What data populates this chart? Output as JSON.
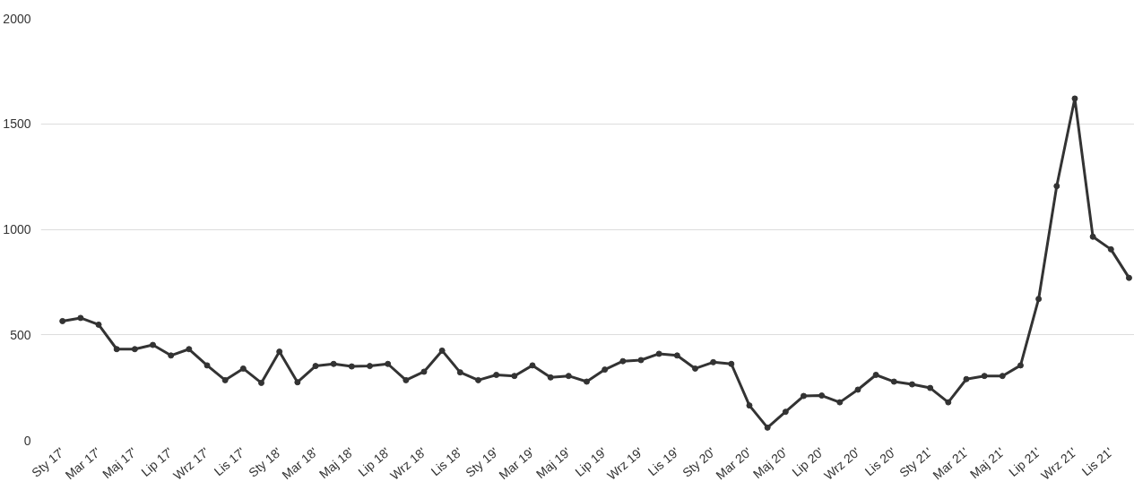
{
  "chart_data": {
    "type": "line",
    "categories": [
      "Sty 17'",
      null,
      "Mar 17'",
      null,
      "Maj 17'",
      null,
      "Lip 17'",
      null,
      "Wrz 17'",
      null,
      "Lis 17'",
      null,
      "Sty 18'",
      null,
      "Mar 18'",
      null,
      "Maj 18'",
      null,
      "Lip 18'",
      null,
      "Wrz 18'",
      null,
      "Lis 18'",
      null,
      "Sty 19'",
      null,
      "Mar 19'",
      null,
      "Maj 19'",
      null,
      "Lip 19'",
      null,
      "Wrz 19'",
      null,
      "Lis 19'",
      null,
      "Sty 20'",
      null,
      "Mar 20'",
      null,
      "Maj 20'",
      null,
      "Lip 20'",
      null,
      "Wrz 20'",
      null,
      "Lis 20'",
      null,
      "Sty 21'",
      null,
      "Mar 21'",
      null,
      "Maj 21'",
      null,
      "Lip 21'",
      null,
      "Wrz 21'",
      null,
      "Lis 21'",
      null
    ],
    "series": [
      {
        "color": "#333333",
        "values": [
          565,
          580,
          548,
          432,
          432,
          452,
          402,
          432,
          355,
          285,
          340,
          272,
          420,
          275,
          352,
          362,
          350,
          352,
          362,
          285,
          325,
          425,
          322,
          285,
          310,
          305,
          355,
          298,
          305,
          278,
          335,
          375,
          380,
          410,
          402,
          340,
          370,
          362,
          165,
          60,
          135,
          210,
          212,
          180,
          240,
          310,
          278,
          265,
          248,
          180,
          290,
          305,
          305,
          355,
          670,
          1205,
          1620,
          965,
          905,
          770
        ]
      }
    ],
    "ylim": [
      0,
      2000
    ],
    "yticks": [
      0,
      500,
      1000,
      1500,
      2000
    ],
    "grid": "y",
    "marker": "circle",
    "line_style": "solid"
  }
}
